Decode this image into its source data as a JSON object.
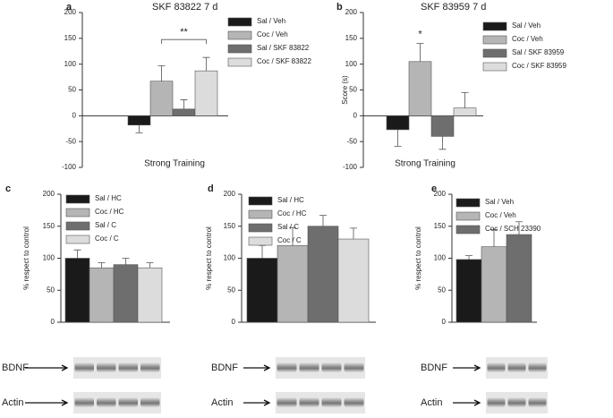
{
  "chart_data": [
    {
      "type": "bar",
      "panel": "a",
      "title": "SKF 83822 7 d",
      "xlabel": "Strong Training",
      "categories": [
        "Sal / Veh",
        "Coc / Veh",
        "Sal / SKF 83822",
        "Coc / SKF 83822"
      ],
      "values": [
        -18,
        67,
        13,
        87
      ],
      "errors": [
        15,
        30,
        18,
        26
      ],
      "colors": [
        "#1a1a1a",
        "#b5b5b5",
        "#6e6e6e",
        "#dcdcdc"
      ],
      "ylim": [
        -100,
        200
      ],
      "yticks": [
        -100,
        -50,
        0,
        50,
        100,
        150,
        200
      ],
      "annotation": "**"
    },
    {
      "type": "bar",
      "panel": "b",
      "title": "SKF 83959 7 d",
      "xlabel": "Strong Training",
      "ylabel": "Score (s)",
      "categories": [
        "Sal / Veh",
        "Coc / Veh",
        "Sal / SKF 83959",
        "Coc / SKF 83959"
      ],
      "values": [
        -27,
        105,
        -40,
        15
      ],
      "errors": [
        32,
        35,
        25,
        30
      ],
      "colors": [
        "#1a1a1a",
        "#b5b5b5",
        "#6e6e6e",
        "#dcdcdc"
      ],
      "ylim": [
        -100,
        200
      ],
      "yticks": [
        -100,
        -50,
        0,
        50,
        100,
        150,
        200
      ],
      "annotation": "*"
    },
    {
      "type": "bar",
      "panel": "c",
      "ylabel": "% respect to control",
      "categories": [
        "Sal / HC",
        "Coc / HC",
        "Sal / C",
        "Coc / C"
      ],
      "values": [
        100,
        85,
        90,
        85
      ],
      "errors": [
        13,
        8,
        10,
        8
      ],
      "colors": [
        "#1a1a1a",
        "#b5b5b5",
        "#6e6e6e",
        "#dcdcdc"
      ],
      "ylim": [
        0,
        200
      ],
      "yticks": [
        0,
        50,
        100,
        150,
        200
      ]
    },
    {
      "type": "bar",
      "panel": "d",
      "ylabel": "% respect to control",
      "categories": [
        "Sal / HC",
        "Coc / HC",
        "Sal / C",
        "Coc / C"
      ],
      "values": [
        100,
        120,
        150,
        130
      ],
      "errors": [
        20,
        28,
        17,
        17
      ],
      "colors": [
        "#1a1a1a",
        "#b5b5b5",
        "#6e6e6e",
        "#dcdcdc"
      ],
      "ylim": [
        0,
        200
      ],
      "yticks": [
        0,
        50,
        100,
        150,
        200
      ]
    },
    {
      "type": "bar",
      "panel": "e",
      "ylabel": "% respect to control",
      "categories": [
        "Sal / Veh",
        "Coc / Veh",
        "Coc / SCH 23390"
      ],
      "values": [
        98,
        118,
        137
      ],
      "errors": [
        6,
        27,
        20
      ],
      "colors": [
        "#1a1a1a",
        "#b5b5b5",
        "#6e6e6e"
      ],
      "ylim": [
        0,
        200
      ],
      "yticks": [
        0,
        50,
        100,
        150,
        200
      ]
    }
  ],
  "blots": [
    {
      "rows": [
        "BDNF",
        "Actin"
      ]
    },
    {
      "rows": [
        "BDNF",
        "Actin"
      ]
    },
    {
      "rows": [
        "BDNF",
        "Actin"
      ]
    }
  ]
}
